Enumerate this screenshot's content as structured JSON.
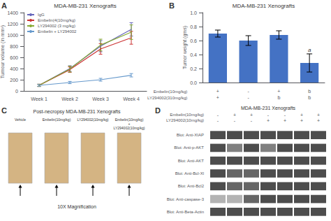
{
  "chart_data": [
    {
      "type": "line",
      "title": "MDA-MB-231 Xenografts",
      "ylabel": "Tumour volume (in mm³)",
      "categories": [
        "Week 1",
        "Week 2",
        "Week 3",
        "Week 4"
      ],
      "series": [
        {
          "name": "IgG",
          "color": "#6666bb",
          "values": [
            100,
            400,
            800,
            1100
          ],
          "errors": [
            20,
            50,
            100,
            120
          ]
        },
        {
          "name": "Embelin(4(10mg/kg)",
          "color": "#cc3333",
          "values": [
            100,
            380,
            750,
            950
          ],
          "errors": [
            20,
            48,
            95,
            115
          ]
        },
        {
          "name": "LY294002 (3 mg/kg)",
          "color": "#88aa33",
          "values": [
            100,
            390,
            820,
            1050
          ],
          "errors": [
            20,
            52,
            105,
            130
          ]
        },
        {
          "name": "Embelin + LY294002",
          "color": "#6699cc",
          "values": [
            100,
            150,
            200,
            280
          ],
          "errors": [
            15,
            20,
            25,
            30
          ]
        }
      ],
      "ylim": [
        0,
        1400
      ],
      "yticks": [
        0,
        200,
        400,
        600,
        800,
        1000,
        1200,
        1400
      ],
      "grid": false,
      "legend": "upper left",
      "annotations": [
        {
          "text": "A"
        }
      ]
    },
    {
      "type": "bar",
      "title": "MDA-MB-231 Xenografts",
      "ylabel": "Tumor weight (gms)",
      "xlabel": "Embelin(10mg/kg)\nLY294002(310mg/kg)",
      "categories": [
        "+\n+",
        "-\n-",
        "+\nb",
        "b\nb"
      ],
      "values": [
        0.7,
        0.6,
        0.68,
        0.28
      ],
      "errors": [
        0.05,
        0.07,
        0.06,
        0.13
      ],
      "color": "#4472c4",
      "ylim": [
        0,
        1.0
      ],
      "yticks": [
        {
          "value": 0,
          "label": "0.0"
        },
        0.2,
        0.4,
        0.6,
        0.8,
        {
          "value": 1,
          "label": "1.0"
        }
      ],
      "grid": false,
      "annotations": [
        {
          "text": "B"
        },
        {
          "text": "a",
          "category": "b\nb"
        }
      ]
    },
    {
      "type": "image",
      "title": "Post-necropsy MDA-MB-231 Xenografts",
      "subtitle": "10X Magnification",
      "categories": [
        "Vehicle",
        "Embelin(10mg/kg)",
        "LY294002(10mg/kg)",
        "Embelin(10mg/kg)\n+\nLY294002(10mg/kg)"
      ],
      "color": "#d4b483",
      "annotations": [
        {
          "text": "C"
        }
      ]
    },
    {
      "type": "heatmap",
      "title": "MDA-MB-231 Xenografts",
      "xlabel": "Embelin(10mg/kg)\nLY294002(10mg/kg)",
      "categories": [
        "-\n-",
        "+\n-",
        "+\n-",
        "-\n+",
        "-\n+",
        "+\n+",
        "+\n+"
      ],
      "y_categories": [
        "Blot: Anti-XIAP",
        "Blot: Anti-p-AKT",
        "Blot: Anti-AKT",
        "Blot: Anti-Bcl-Xl",
        "Blot: Anti-Bcl2",
        "Blot: Anti-caspase-3",
        "Blot: Anti-Beta-Actin"
      ],
      "values": [
        [
          0.3,
          0.3,
          0.3,
          0.3,
          0.3,
          0.3,
          0.3
        ],
        [
          0.3,
          0.5,
          0.3,
          0.5,
          0.3,
          0.3,
          0.3
        ],
        [
          0.3,
          0.3,
          0.3,
          0.3,
          0.3,
          0.3,
          0.3
        ],
        [
          0.3,
          0.4,
          0.4,
          0.3,
          0.3,
          0.3,
          0.3
        ],
        [
          0.3,
          0.4,
          0.4,
          0.3,
          0.3,
          0.3,
          0.3
        ],
        [
          0.7,
          0.7,
          0.4,
          0.3,
          0.3,
          0.3,
          0.3
        ],
        [
          0.3,
          0.3,
          0.3,
          0.3,
          0.3,
          0.3,
          0.3
        ]
      ],
      "annotations": [
        {
          "text": "D"
        }
      ]
    }
  ]
}
